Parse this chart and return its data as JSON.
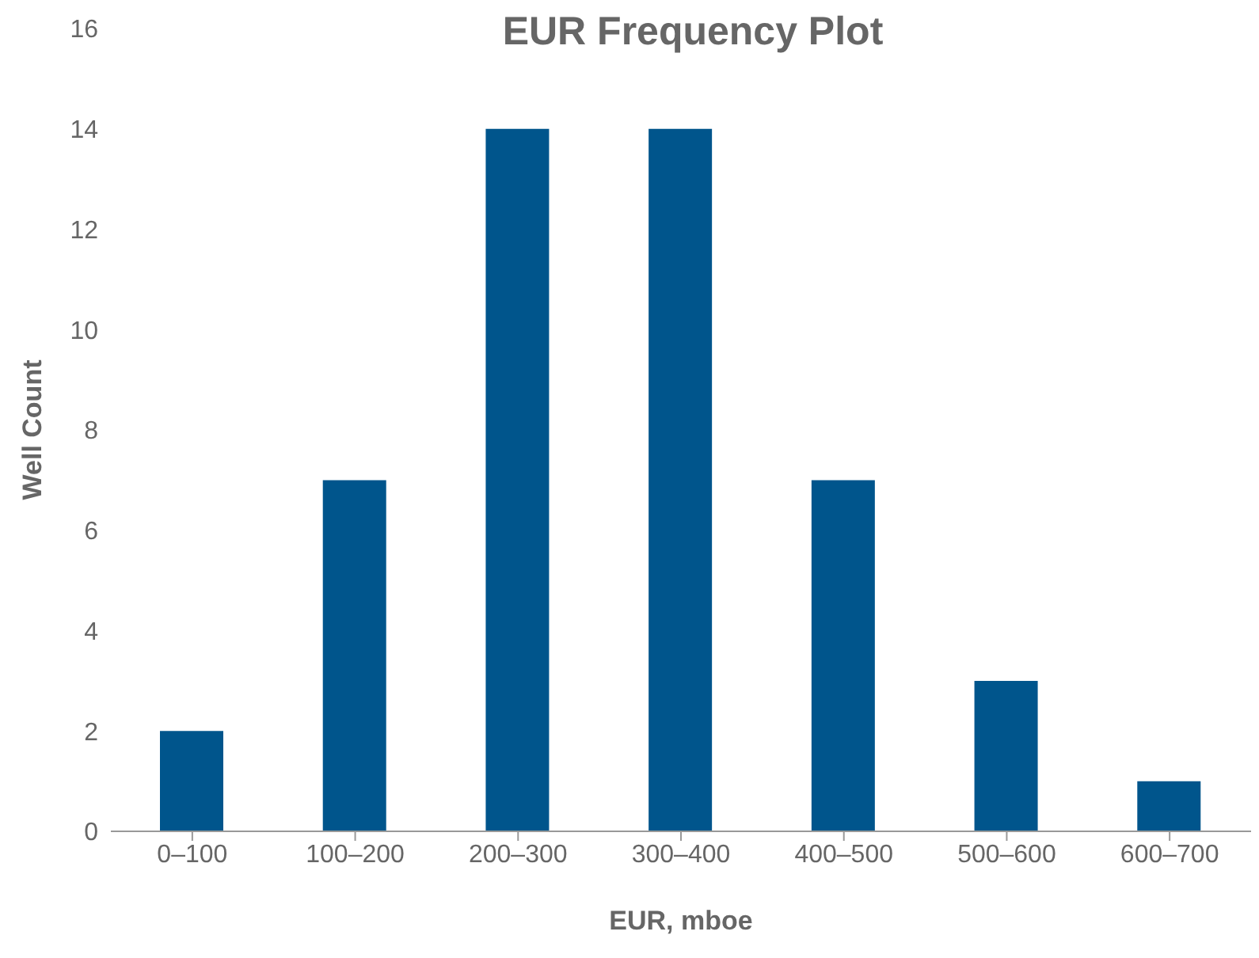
{
  "chart_data": {
    "type": "bar",
    "title": "EUR Frequency Plot",
    "xlabel": "EUR, mboe",
    "ylabel": "Well Count",
    "categories": [
      "0–100",
      "100–200",
      "200–300",
      "300–400",
      "400–500",
      "500–600",
      "600–700"
    ],
    "values": [
      2,
      7,
      14,
      14,
      7,
      3,
      1
    ],
    "color": "#00558c",
    "ylim": [
      0,
      16
    ],
    "yticks": [
      0,
      2,
      4,
      6,
      8,
      10,
      12,
      14,
      16
    ],
    "grid": false
  }
}
